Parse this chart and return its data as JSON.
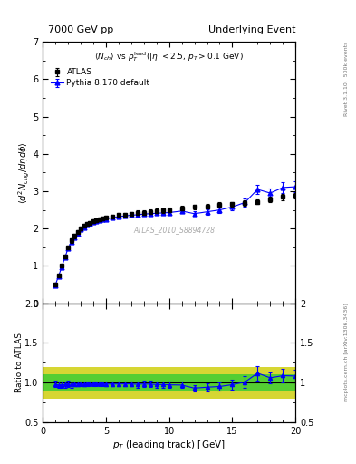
{
  "title_left": "7000 GeV pp",
  "title_right": "Underlying Event",
  "ylabel_main": "$\\langle d^2 N_{chg}/d\\eta d\\phi \\rangle$",
  "ylabel_ratio": "Ratio to ATLAS",
  "xlabel": "$p_T$ (leading track) [GeV]",
  "watermark": "ATLAS_2010_S8894728",
  "ylim_main": [
    0,
    7
  ],
  "ylim_ratio": [
    0.5,
    2.0
  ],
  "xlim": [
    0,
    20
  ],
  "atlas_x": [
    1.0,
    1.25,
    1.5,
    1.75,
    2.0,
    2.25,
    2.5,
    2.75,
    3.0,
    3.25,
    3.5,
    3.75,
    4.0,
    4.25,
    4.5,
    4.75,
    5.0,
    5.5,
    6.0,
    6.5,
    7.0,
    7.5,
    8.0,
    8.5,
    9.0,
    9.5,
    10.0,
    11.0,
    12.0,
    13.0,
    14.0,
    15.0,
    16.0,
    17.0,
    18.0,
    19.0,
    20.0
  ],
  "atlas_y": [
    0.5,
    0.75,
    1.0,
    1.25,
    1.5,
    1.68,
    1.8,
    1.9,
    2.0,
    2.08,
    2.13,
    2.16,
    2.2,
    2.22,
    2.25,
    2.27,
    2.3,
    2.33,
    2.36,
    2.38,
    2.4,
    2.42,
    2.43,
    2.45,
    2.47,
    2.48,
    2.5,
    2.55,
    2.58,
    2.6,
    2.63,
    2.65,
    2.68,
    2.72,
    2.78,
    2.85,
    2.88
  ],
  "atlas_yerr": [
    0.04,
    0.04,
    0.04,
    0.05,
    0.05,
    0.05,
    0.05,
    0.05,
    0.05,
    0.05,
    0.05,
    0.05,
    0.05,
    0.05,
    0.05,
    0.05,
    0.05,
    0.05,
    0.05,
    0.05,
    0.05,
    0.06,
    0.06,
    0.06,
    0.06,
    0.06,
    0.06,
    0.06,
    0.06,
    0.06,
    0.07,
    0.07,
    0.07,
    0.07,
    0.07,
    0.08,
    0.08
  ],
  "pythia_x": [
    1.0,
    1.25,
    1.5,
    1.75,
    2.0,
    2.25,
    2.5,
    2.75,
    3.0,
    3.25,
    3.5,
    3.75,
    4.0,
    4.25,
    4.5,
    4.75,
    5.0,
    5.5,
    6.0,
    6.5,
    7.0,
    7.5,
    8.0,
    8.5,
    9.0,
    9.5,
    10.0,
    11.0,
    12.0,
    13.0,
    14.0,
    15.0,
    16.0,
    17.0,
    18.0,
    19.0,
    20.0
  ],
  "pythia_y": [
    0.49,
    0.73,
    0.97,
    1.22,
    1.47,
    1.64,
    1.77,
    1.87,
    1.97,
    2.04,
    2.1,
    2.13,
    2.17,
    2.19,
    2.22,
    2.24,
    2.26,
    2.29,
    2.32,
    2.34,
    2.36,
    2.37,
    2.39,
    2.4,
    2.41,
    2.42,
    2.43,
    2.47,
    2.4,
    2.45,
    2.5,
    2.58,
    2.7,
    3.05,
    2.95,
    3.1,
    3.12
  ],
  "pythia_yerr": [
    0.02,
    0.02,
    0.02,
    0.02,
    0.03,
    0.03,
    0.03,
    0.03,
    0.03,
    0.03,
    0.03,
    0.03,
    0.03,
    0.03,
    0.03,
    0.03,
    0.03,
    0.03,
    0.03,
    0.04,
    0.04,
    0.04,
    0.04,
    0.04,
    0.04,
    0.04,
    0.05,
    0.05,
    0.06,
    0.07,
    0.07,
    0.08,
    0.1,
    0.12,
    0.12,
    0.14,
    0.14
  ],
  "ratio_y": [
    0.98,
    0.97,
    0.97,
    0.976,
    0.98,
    0.976,
    0.983,
    0.984,
    0.985,
    0.981,
    0.986,
    0.986,
    0.986,
    0.986,
    0.987,
    0.987,
    0.983,
    0.982,
    0.983,
    0.984,
    0.983,
    0.979,
    0.983,
    0.98,
    0.976,
    0.975,
    0.972,
    0.969,
    0.93,
    0.942,
    0.951,
    0.974,
    1.007,
    1.12,
    1.06,
    1.088,
    1.083
  ],
  "ratio_yerr": [
    0.04,
    0.04,
    0.04,
    0.04,
    0.04,
    0.04,
    0.03,
    0.03,
    0.03,
    0.03,
    0.03,
    0.03,
    0.03,
    0.03,
    0.03,
    0.03,
    0.03,
    0.03,
    0.03,
    0.03,
    0.03,
    0.04,
    0.04,
    0.04,
    0.04,
    0.04,
    0.04,
    0.04,
    0.04,
    0.05,
    0.05,
    0.06,
    0.07,
    0.09,
    0.07,
    0.09,
    0.08
  ],
  "green_band_y1": 0.9,
  "green_band_y2": 1.1,
  "yellow_band_y1": 0.8,
  "yellow_band_y2": 1.2,
  "atlas_color": "black",
  "pythia_color": "blue",
  "green_color": "#33cc33",
  "yellow_color": "#cccc00",
  "xticks": [
    0,
    5,
    10,
    15,
    20
  ],
  "yticks_main": [
    0,
    1,
    2,
    3,
    4,
    5,
    6,
    7
  ],
  "yticks_ratio": [
    0.5,
    1.0,
    1.5,
    2.0
  ],
  "right_label1": "Rivet 3.1.10,  500k events",
  "right_label2": "mcplots.cern.ch [arXiv:1306.3436]"
}
